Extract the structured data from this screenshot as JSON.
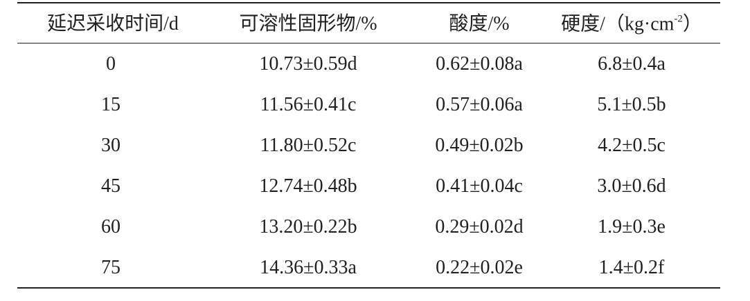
{
  "table": {
    "header": [
      "延迟采收时间/d",
      "可溶性固形物/%",
      "酸度/%",
      [
        "硬度/（kg·cm",
        "-2",
        "）"
      ]
    ],
    "rows": [
      [
        "0",
        "10.73±0.59d",
        "0.62±0.08a",
        "6.8±0.4a"
      ],
      [
        "15",
        "11.56±0.41c",
        "0.57±0.06a",
        "5.1±0.5b"
      ],
      [
        "30",
        "11.80±0.52c",
        "0.49±0.02b",
        "4.2±0.5c"
      ],
      [
        "45",
        "12.74±0.48b",
        "0.41±0.04c",
        "3.0±0.6d"
      ],
      [
        "60",
        "13.20±0.22b",
        "0.29±0.02d",
        "1.9±0.3e"
      ],
      [
        "75",
        "14.36±0.33a",
        "0.22±0.02e",
        "1.4±0.2f"
      ]
    ]
  }
}
